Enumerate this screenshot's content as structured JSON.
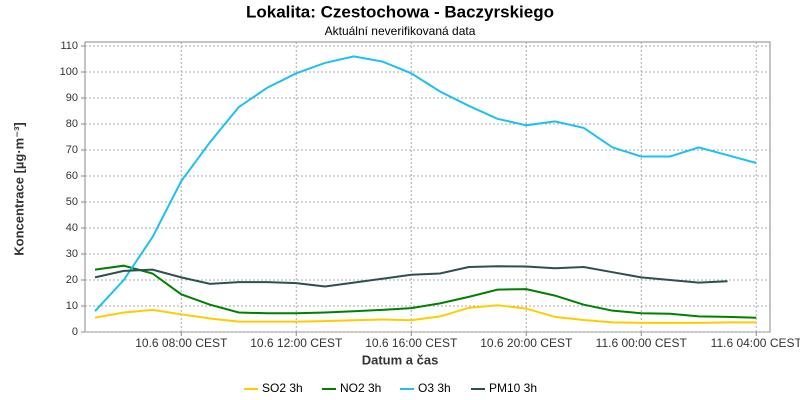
{
  "chart_data": {
    "type": "line",
    "title": "Lokalita: Czestochowa - Baczyrskiego",
    "subtitle": "Aktuální neverifikovaná data",
    "x_label": "Datum a čas",
    "y_label": "Koncentrace [µg·m⁻³]",
    "categories": [
      null,
      null,
      null,
      "10.6 08:00 CEST",
      null,
      null,
      null,
      "10.6 12:00 CEST",
      null,
      null,
      null,
      "10.6 16:00 CEST",
      null,
      null,
      null,
      "10.6 20:00 CEST",
      null,
      null,
      null,
      "11.6 00:00 CEST",
      null,
      null,
      null,
      "11.6 04:00 CEST"
    ],
    "ylim": [
      0,
      110
    ],
    "yticks": [
      0,
      10,
      20,
      30,
      40,
      50,
      60,
      70,
      80,
      90,
      100,
      110
    ],
    "grid": true,
    "legend": "bottom",
    "series": [
      {
        "name": "SO2 3h",
        "color": "#ffcc00",
        "values": [
          5.5,
          7.5,
          8.5,
          6.8,
          5.2,
          4,
          4,
          4,
          4.2,
          4.5,
          4.8,
          4.5,
          6,
          9.3,
          10.3,
          9,
          5.8,
          4.6,
          3.7,
          3.5,
          3.5,
          3.5,
          3.7,
          3.7
        ]
      },
      {
        "name": "NO2 3h",
        "color": "#008000",
        "values": [
          24,
          25.5,
          22.5,
          14.5,
          10.5,
          7.5,
          7.2,
          7.2,
          7.5,
          8,
          8.5,
          9.2,
          11,
          13.5,
          16.3,
          16.5,
          14,
          10.5,
          8.2,
          7.2,
          7,
          6,
          5.8,
          5.5
        ]
      },
      {
        "name": "O3 3h",
        "color": "#1ec0f0",
        "values": [
          8,
          20,
          36.5,
          58,
          73,
          86.5,
          94,
          99.5,
          103.5,
          106,
          104,
          99.5,
          92.5,
          87,
          82,
          79.5,
          81,
          78.5,
          71,
          67.5,
          67.5,
          71,
          68,
          65
        ]
      },
      {
        "name": "PM10 3h",
        "color": "#2f4f4f",
        "values": [
          21,
          23.5,
          24,
          21,
          18.5,
          19.2,
          19.2,
          18.8,
          17.5,
          19,
          20.5,
          22,
          22.5,
          25,
          25.3,
          25.2,
          24.5,
          25,
          23,
          21,
          20,
          19,
          19.5,
          null
        ]
      }
    ]
  }
}
